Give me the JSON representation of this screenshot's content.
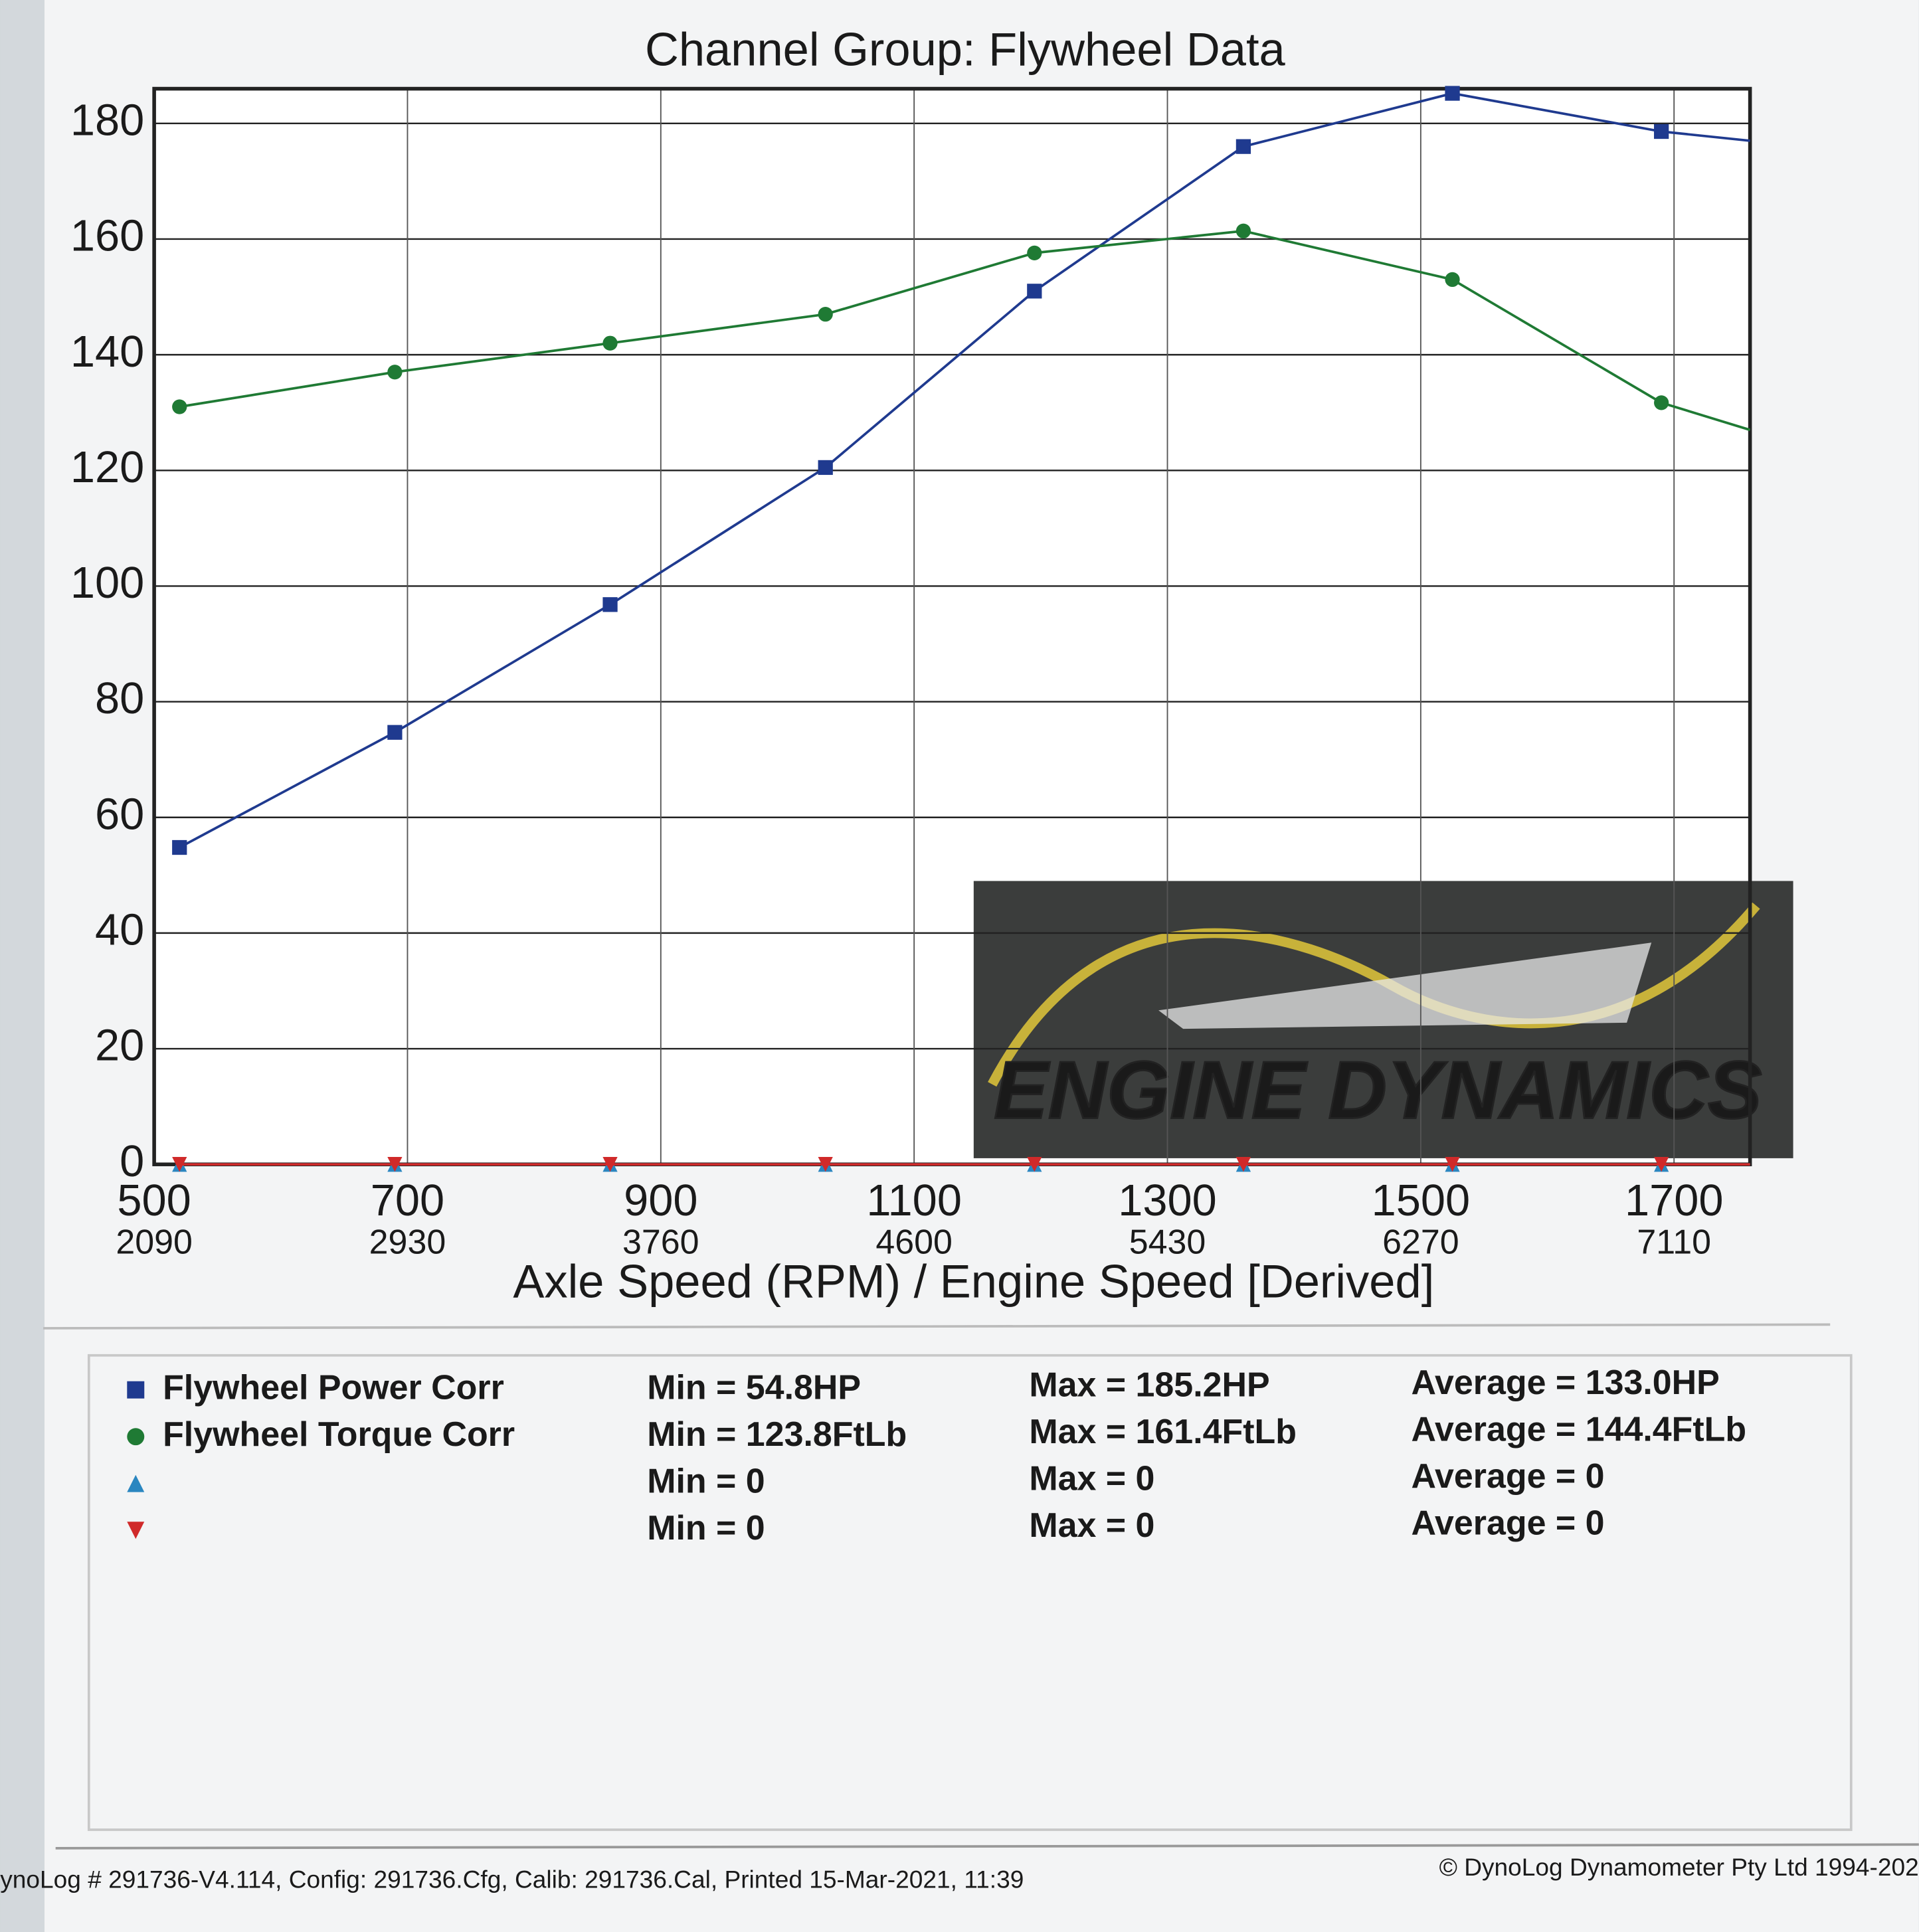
{
  "chart_data": {
    "type": "line",
    "title": "Channel Group: Flywheel Data",
    "x_label": "Axle Speed (RPM) / Engine Speed [Derived]",
    "x": [
      520,
      690,
      860,
      1030,
      1195,
      1360,
      1525,
      1690,
      1760
    ],
    "xlim": [
      500,
      1760
    ],
    "xticks": [
      500,
      700,
      900,
      1100,
      1300,
      1500,
      1700
    ],
    "xticks_engine": [
      2090,
      2930,
      3760,
      4600,
      5430,
      6270,
      7110
    ],
    "ylim": [
      0,
      186
    ],
    "yticks": [
      0,
      20,
      40,
      60,
      80,
      100,
      120,
      140,
      160,
      180
    ],
    "grid": true,
    "series": [
      {
        "name": "Flywheel Power Corr",
        "color": "#1f3a8f",
        "marker": "square",
        "values": [
          54.8,
          74.7,
          96.8,
          120.5,
          151,
          176,
          185.2,
          178.6,
          177
        ]
      },
      {
        "name": "Flywheel Torque Corr",
        "color": "#1f7a34",
        "marker": "circle",
        "values": [
          131,
          137,
          142,
          147,
          157.6,
          161.4,
          153,
          131.7,
          127
        ]
      },
      {
        "name": null,
        "color": "#2a86c0",
        "marker": "triangle-up",
        "values": [
          0,
          0,
          0,
          0,
          0,
          0,
          0,
          0,
          0
        ]
      },
      {
        "name": null,
        "color": "#d02a2a",
        "marker": "triangle-down",
        "values": [
          0,
          0,
          0,
          0,
          0,
          0,
          0,
          0,
          0
        ]
      }
    ],
    "stats": [
      [
        "Min = 54.8HP",
        "Max = 185.2HP",
        "Average = 133.0HP"
      ],
      [
        "Min = 123.8FtLb",
        "Max = 161.4FtLb",
        "Average = 144.4FtLb"
      ],
      [
        "Min = 0",
        "Max = 0",
        "Average = 0"
      ],
      [
        "Min = 0",
        "Max = 0",
        "Average = 0"
      ]
    ],
    "logo_text": "ENGINE DYNAMICS",
    "footer_left": "ynoLog # 291736-V4.114, Config: 291736.Cfg, Calib: 291736.Cal, Printed 15-Mar-2021, 11:39",
    "footer_right": "© DynoLog Dynamometer Pty Ltd 1994-202"
  }
}
